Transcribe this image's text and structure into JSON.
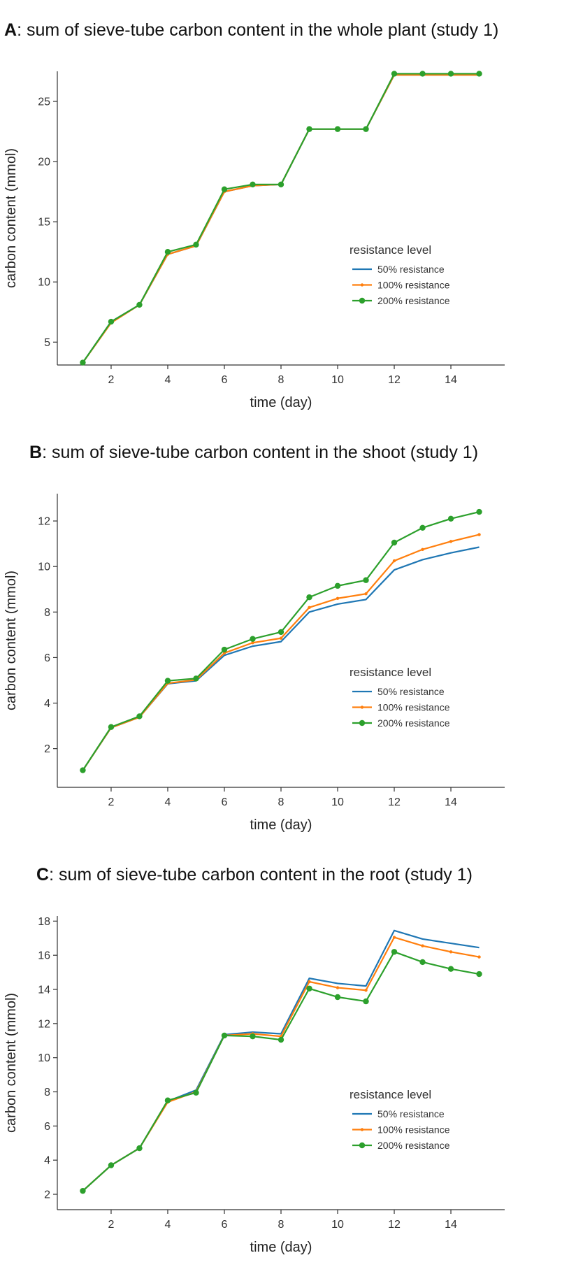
{
  "colors": {
    "50": "#1f77b4",
    "100": "#ff7f0e",
    "200": "#2ca02c"
  },
  "chart_data": [
    {
      "type": "line",
      "panel_letter": "A",
      "title": ": sum of sieve-tube carbon content in the whole plant (study 1)",
      "xlabel": "time (day)",
      "ylabel": "carbon content (mmol)",
      "xlim": [
        0.1,
        15.9
      ],
      "ylim": [
        3.1,
        27.5
      ],
      "xticks": [
        2,
        4,
        6,
        8,
        10,
        12,
        14
      ],
      "yticks": [
        5,
        10,
        15,
        20,
        25
      ],
      "legend_title": "resistance level",
      "legend_placement": "center-right",
      "grid": false,
      "x": [
        1,
        2,
        3,
        4,
        5,
        6,
        7,
        8,
        9,
        10,
        11,
        12,
        13,
        14,
        15
      ],
      "series": [
        {
          "name": "50% resistance",
          "values": [
            3.3,
            6.7,
            8.1,
            12.3,
            13.0,
            17.5,
            18.0,
            18.1,
            22.7,
            22.7,
            22.7,
            27.2,
            27.2,
            27.2,
            27.2
          ]
        },
        {
          "name": "100% resistance",
          "values": [
            3.3,
            6.6,
            8.1,
            12.3,
            13.0,
            17.5,
            18.0,
            18.1,
            22.7,
            22.7,
            22.7,
            27.2,
            27.2,
            27.2,
            27.2
          ]
        },
        {
          "name": "200% resistance",
          "values": [
            3.3,
            6.7,
            8.1,
            12.5,
            13.1,
            17.7,
            18.1,
            18.1,
            22.7,
            22.7,
            22.7,
            27.3,
            27.3,
            27.3,
            27.3
          ]
        }
      ]
    },
    {
      "type": "line",
      "panel_letter": "B",
      "title": ": sum of sieve-tube carbon content in the shoot (study 1)",
      "xlabel": "time (day)",
      "ylabel": "carbon content (mmol)",
      "xlim": [
        0.1,
        15.9
      ],
      "ylim": [
        0.3,
        13.2
      ],
      "xticks": [
        2,
        4,
        6,
        8,
        10,
        12,
        14
      ],
      "yticks": [
        2,
        4,
        6,
        8,
        10,
        12
      ],
      "legend_title": "resistance level",
      "legend_placement": "center-right",
      "grid": false,
      "x": [
        1,
        2,
        3,
        4,
        5,
        6,
        7,
        8,
        9,
        10,
        11,
        12,
        13,
        14,
        15
      ],
      "series": [
        {
          "name": "50% resistance",
          "values": [
            1.05,
            2.92,
            3.38,
            4.85,
            4.98,
            6.1,
            6.5,
            6.7,
            8.0,
            8.35,
            8.55,
            9.85,
            10.3,
            10.6,
            10.85
          ]
        },
        {
          "name": "100% resistance",
          "values": [
            1.05,
            2.92,
            3.38,
            4.87,
            5.02,
            6.2,
            6.65,
            6.85,
            8.2,
            8.6,
            8.8,
            10.25,
            10.75,
            11.1,
            11.4
          ]
        },
        {
          "name": "200% resistance",
          "values": [
            1.05,
            2.95,
            3.42,
            4.98,
            5.08,
            6.35,
            6.82,
            7.12,
            8.65,
            9.15,
            9.4,
            11.05,
            11.7,
            12.1,
            12.4
          ]
        }
      ]
    },
    {
      "type": "line",
      "panel_letter": "C",
      "title": ": sum of sieve-tube carbon content in the root (study 1)",
      "xlabel": "time (day)",
      "ylabel": "carbon content (mmol)",
      "xlim": [
        0.1,
        15.9
      ],
      "ylim": [
        1.1,
        18.3
      ],
      "xticks": [
        2,
        4,
        6,
        8,
        10,
        12,
        14
      ],
      "yticks": [
        2,
        4,
        6,
        8,
        10,
        12,
        14,
        16,
        18
      ],
      "legend_title": "resistance level",
      "legend_placement": "center-right",
      "grid": false,
      "x": [
        1,
        2,
        3,
        4,
        5,
        6,
        7,
        8,
        9,
        10,
        11,
        12,
        13,
        14,
        15
      ],
      "series": [
        {
          "name": "50% resistance",
          "values": [
            2.2,
            3.7,
            4.7,
            7.45,
            8.1,
            11.35,
            11.5,
            11.4,
            14.65,
            14.35,
            14.2,
            17.45,
            16.95,
            16.7,
            16.45
          ]
        },
        {
          "name": "100% resistance",
          "values": [
            2.2,
            3.7,
            4.7,
            7.4,
            8.0,
            11.3,
            11.4,
            11.25,
            14.45,
            14.1,
            13.95,
            17.05,
            16.55,
            16.2,
            15.9
          ]
        },
        {
          "name": "200% resistance",
          "values": [
            2.2,
            3.7,
            4.7,
            7.5,
            7.95,
            11.3,
            11.25,
            11.05,
            14.05,
            13.55,
            13.3,
            16.2,
            15.6,
            15.2,
            14.9
          ]
        }
      ]
    }
  ]
}
